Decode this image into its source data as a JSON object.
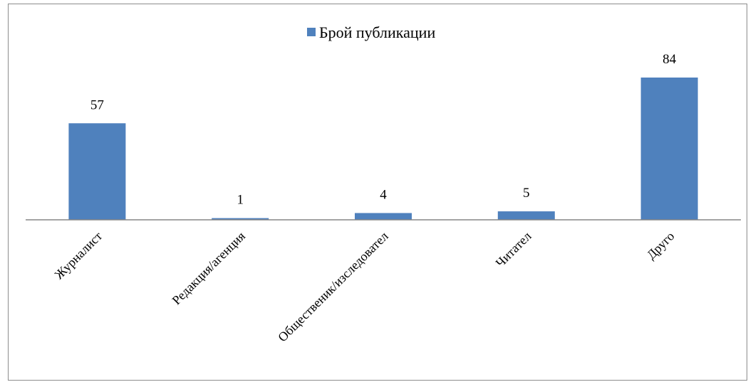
{
  "chart_data": {
    "type": "bar",
    "categories": [
      "Журналист",
      "Редакция/агенция",
      "Общественик/изследовател",
      "Читател",
      "Друго"
    ],
    "series": [
      {
        "name": "Брой публикации",
        "values": [
          57,
          1,
          4,
          5,
          84
        ],
        "color": "#4F81BD"
      }
    ],
    "data_labels": [
      "57",
      "1",
      "4",
      "5",
      "84"
    ],
    "legend_position": "top-center",
    "grid": false,
    "ylim": [
      0,
      84
    ],
    "axis_color": "#868686"
  }
}
